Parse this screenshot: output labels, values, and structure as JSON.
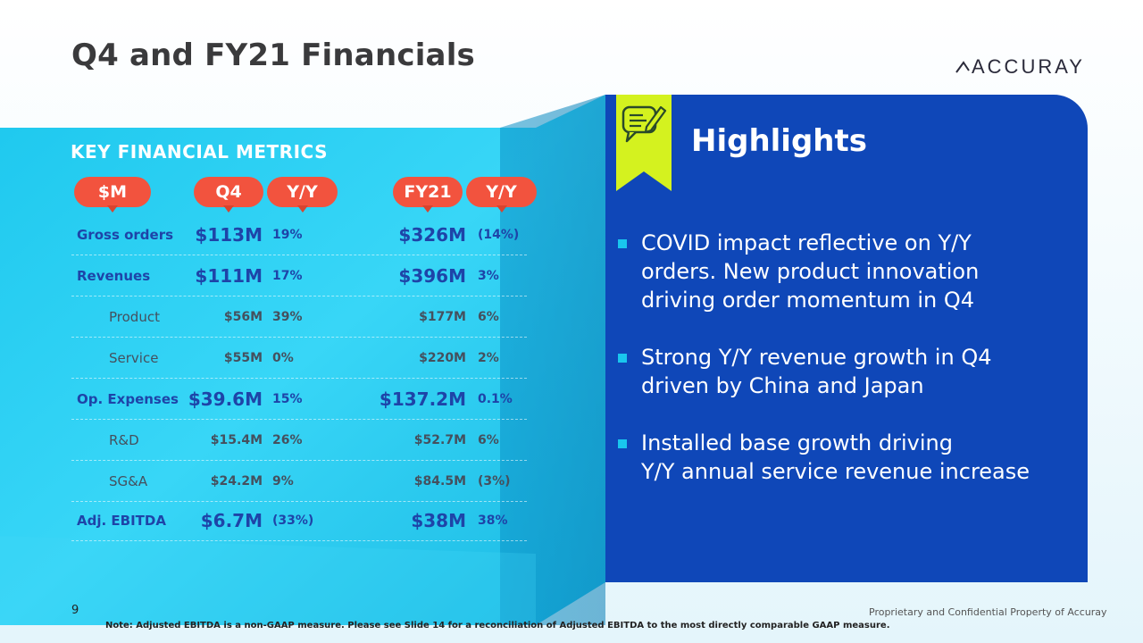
{
  "slide": {
    "title": "Q4 and FY21 Financials",
    "logo_text": "ACCURAY",
    "page_number": "9"
  },
  "metrics": {
    "section_title": "KEY FINANCIAL METRICS",
    "headers": {
      "unit": "$M",
      "q4": "Q4",
      "q4_yy": "Y/Y",
      "fy": "FY21",
      "fy_yy": "Y/Y"
    },
    "rows": [
      {
        "label": "Gross orders",
        "q4": "$113M",
        "q4_yy": "19%",
        "fy": "$326M",
        "fy_yy": "(14%)"
      },
      {
        "label": "Revenues",
        "q4": "$111M",
        "q4_yy": "17%",
        "fy": "$396M",
        "fy_yy": "3%"
      },
      {
        "label": "Product",
        "q4": "$56M",
        "q4_yy": "39%",
        "fy": "$177M",
        "fy_yy": "6%"
      },
      {
        "label": "Service",
        "q4": "$55M",
        "q4_yy": "0%",
        "fy": "$220M",
        "fy_yy": "2%"
      },
      {
        "label": "Op. Expenses",
        "q4": "$39.6M",
        "q4_yy": "15%",
        "fy": "$137.2M",
        "fy_yy": "0.1%"
      },
      {
        "label": "R&D",
        "q4": "$15.4M",
        "q4_yy": "26%",
        "fy": "$52.7M",
        "fy_yy": "6%"
      },
      {
        "label": "SG&A",
        "q4": "$24.2M",
        "q4_yy": "9%",
        "fy": "$84.5M",
        "fy_yy": "(3%)"
      },
      {
        "label": "Adj. EBITDA",
        "q4": "$6.7M",
        "q4_yy": "(33%)",
        "fy": "$38M",
        "fy_yy": "38%"
      }
    ]
  },
  "highlights": {
    "title": "Highlights",
    "bullets": [
      "COVID impact reflective on Y/Y\norders. New product innovation\ndriving order momentum in Q4",
      "Strong Y/Y revenue growth in Q4\ndriven by China and Japan",
      "Installed base growth driving\nY/Y annual service revenue increase"
    ]
  },
  "footer": {
    "note": "Note: Adjusted EBITDA is a non-GAAP measure.  Please see Slide 14 for a reconciliation of Adjusted EBITDA to the most directly comparable GAAP measure.",
    "confidential": "Proprietary and Confidential Property of Accuray"
  },
  "colors": {
    "accent_red": "#f2533e",
    "panel_blue": "#0f47b8",
    "metric_blue": "#1e44a8",
    "cyan": "#19c6ee",
    "ribbon_lime": "#d4f21f"
  },
  "icons": [
    "chat-bubble-pencil-icon",
    "accuray-logo-mark"
  ]
}
